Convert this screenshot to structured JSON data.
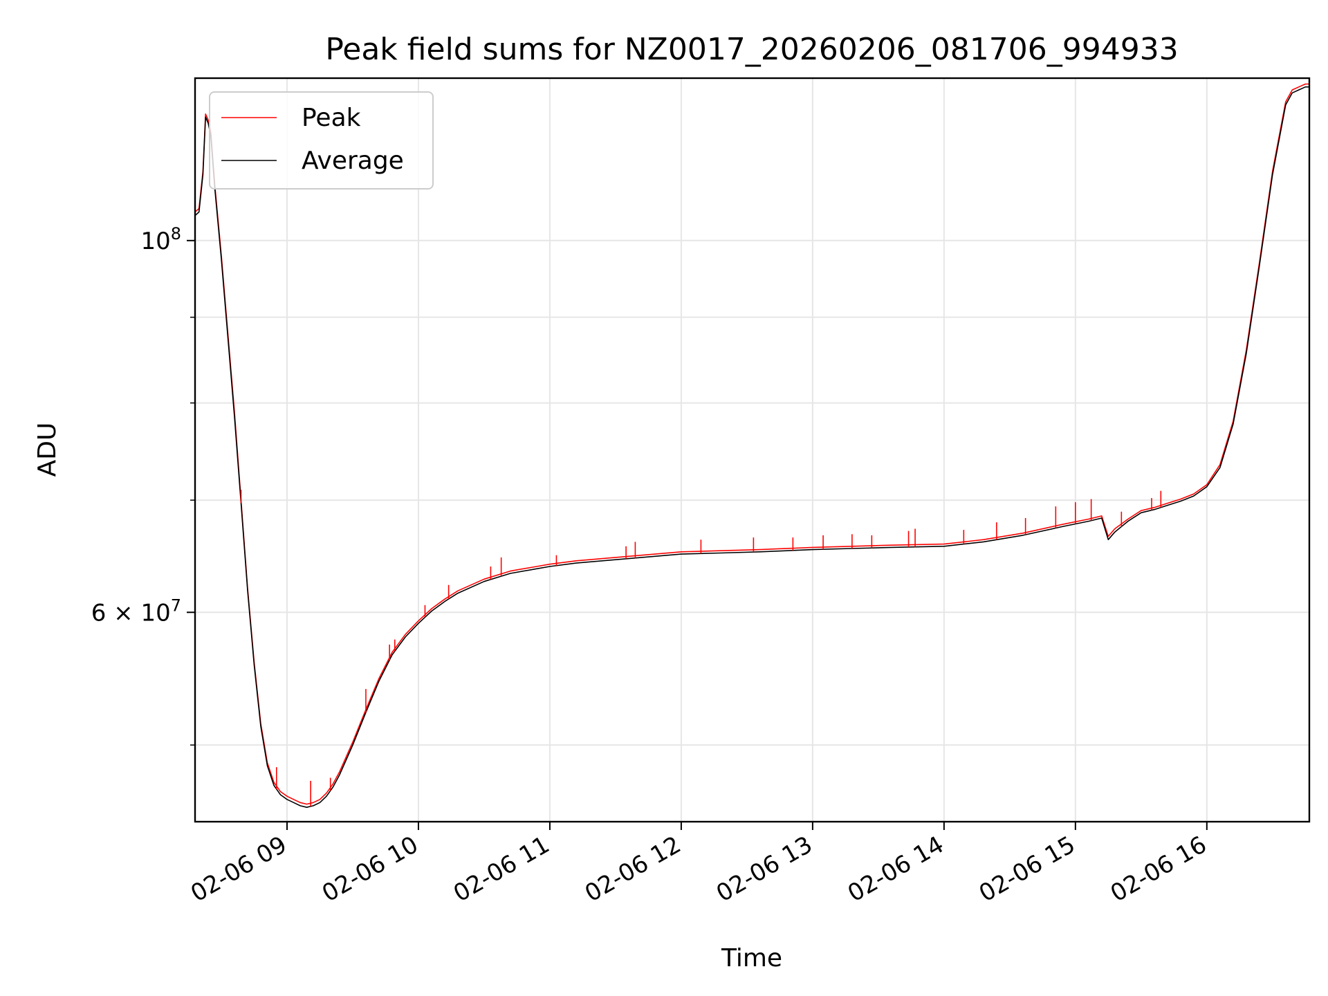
{
  "chart_data": {
    "type": "line",
    "title": "Peak field sums for NZ0017_20260206_081706_994933",
    "xlabel": "Time",
    "ylabel": "ADU",
    "y_scale": "log",
    "ylim": [
      45000000,
      125000000
    ],
    "xlim": [
      8.3,
      16.78
    ],
    "grid": true,
    "legend_position": "top-left",
    "x_ticks": [
      {
        "value": 9,
        "label": "02-06 09"
      },
      {
        "value": 10,
        "label": "02-06 10"
      },
      {
        "value": 11,
        "label": "02-06 11"
      },
      {
        "value": 12,
        "label": "02-06 12"
      },
      {
        "value": 13,
        "label": "02-06 13"
      },
      {
        "value": 14,
        "label": "02-06 14"
      },
      {
        "value": 15,
        "label": "02-06 15"
      },
      {
        "value": 16,
        "label": "02-06 16"
      }
    ],
    "y_ticks": [
      {
        "value": 100000000,
        "label_base": "10",
        "label_exp": "8",
        "label_prefix": ""
      },
      {
        "value": 60000000,
        "label_base": "10",
        "label_exp": "7",
        "label_prefix": "6 × "
      }
    ],
    "y_minor_ticks": [
      50000000,
      70000000,
      80000000,
      90000000
    ],
    "series": [
      {
        "name": "Peak",
        "color": "#ff0000",
        "x": [
          8.3,
          8.33,
          8.36,
          8.38,
          8.4,
          8.42,
          8.45,
          8.5,
          8.55,
          8.6,
          8.65,
          8.7,
          8.75,
          8.8,
          8.85,
          8.9,
          8.95,
          9.0,
          9.05,
          9.1,
          9.15,
          9.2,
          9.25,
          9.3,
          9.35,
          9.4,
          9.5,
          9.6,
          9.7,
          9.8,
          9.9,
          10.0,
          10.1,
          10.2,
          10.3,
          10.5,
          10.7,
          10.9,
          11.0,
          11.2,
          11.5,
          11.8,
          12.0,
          12.3,
          12.6,
          13.0,
          13.3,
          13.6,
          14.0,
          14.3,
          14.6,
          14.9,
          15.1,
          15.2,
          15.25,
          15.3,
          15.4,
          15.5,
          15.6,
          15.7,
          15.8,
          15.9,
          16.0,
          16.1,
          16.2,
          16.3,
          16.4,
          16.5,
          16.6,
          16.65,
          16.7,
          16.75,
          16.78
        ],
        "values": [
          104000000,
          104500000,
          110000000,
          119000000,
          118000000,
          116000000,
          108000000,
          98000000,
          88000000,
          79000000,
          70000000,
          62000000,
          56000000,
          51500000,
          48800000,
          47500000,
          46900000,
          46600000,
          46400000,
          46200000,
          46100000,
          46200000,
          46400000,
          46800000,
          47400000,
          48200000,
          50200000,
          52500000,
          54800000,
          56800000,
          58200000,
          59300000,
          60300000,
          61100000,
          61800000,
          62800000,
          63500000,
          63900000,
          64100000,
          64400000,
          64700000,
          65000000,
          65200000,
          65300000,
          65400000,
          65600000,
          65700000,
          65800000,
          65900000,
          66300000,
          66900000,
          67700000,
          68200000,
          68500000,
          66600000,
          67300000,
          68200000,
          69000000,
          69300000,
          69700000,
          70100000,
          70600000,
          71500000,
          73500000,
          78000000,
          86000000,
          97000000,
          110000000,
          121000000,
          123000000,
          123500000,
          124000000,
          124000000
        ]
      },
      {
        "name": "Average",
        "color": "#000000",
        "x": [
          8.3,
          8.33,
          8.36,
          8.38,
          8.4,
          8.42,
          8.45,
          8.5,
          8.55,
          8.6,
          8.65,
          8.7,
          8.75,
          8.8,
          8.85,
          8.9,
          8.95,
          9.0,
          9.05,
          9.1,
          9.15,
          9.2,
          9.25,
          9.3,
          9.35,
          9.4,
          9.5,
          9.6,
          9.7,
          9.8,
          9.9,
          10.0,
          10.1,
          10.2,
          10.3,
          10.5,
          10.7,
          10.9,
          11.0,
          11.2,
          11.5,
          11.8,
          12.0,
          12.3,
          12.6,
          13.0,
          13.3,
          13.6,
          14.0,
          14.3,
          14.6,
          14.9,
          15.1,
          15.2,
          15.25,
          15.3,
          15.4,
          15.5,
          15.6,
          15.7,
          15.8,
          15.9,
          16.0,
          16.1,
          16.2,
          16.3,
          16.4,
          16.5,
          16.6,
          16.65,
          16.7,
          16.75,
          16.78
        ],
        "values": [
          103500000,
          104000000,
          109500000,
          118500000,
          117500000,
          115500000,
          107500000,
          97500000,
          87500000,
          78500000,
          69700000,
          61800000,
          55800000,
          51300000,
          48600000,
          47300000,
          46700000,
          46400000,
          46200000,
          46000000,
          45900000,
          46000000,
          46200000,
          46600000,
          47200000,
          48000000,
          50000000,
          52300000,
          54600000,
          56600000,
          58000000,
          59100000,
          60100000,
          60900000,
          61600000,
          62600000,
          63300000,
          63700000,
          63900000,
          64200000,
          64500000,
          64800000,
          65000000,
          65100000,
          65200000,
          65400000,
          65500000,
          65600000,
          65700000,
          66100000,
          66700000,
          67500000,
          68000000,
          68300000,
          66300000,
          67000000,
          68000000,
          68800000,
          69100000,
          69500000,
          69900000,
          70400000,
          71300000,
          73200000,
          77700000,
          85600000,
          96600000,
          109500000,
          120500000,
          122500000,
          123000000,
          123500000,
          123500000
        ]
      }
    ],
    "peak_spikes": [
      {
        "x": 8.65,
        "value": 71000000
      },
      {
        "x": 8.92,
        "value": 48500000
      },
      {
        "x": 9.18,
        "value": 47600000
      },
      {
        "x": 9.33,
        "value": 47800000
      },
      {
        "x": 9.6,
        "value": 54000000
      },
      {
        "x": 9.78,
        "value": 57400000
      },
      {
        "x": 9.82,
        "value": 57800000
      },
      {
        "x": 10.05,
        "value": 60600000
      },
      {
        "x": 10.23,
        "value": 62300000
      },
      {
        "x": 10.55,
        "value": 63900000
      },
      {
        "x": 10.63,
        "value": 64700000
      },
      {
        "x": 11.05,
        "value": 64900000
      },
      {
        "x": 11.58,
        "value": 65700000
      },
      {
        "x": 11.65,
        "value": 66100000
      },
      {
        "x": 12.15,
        "value": 66300000
      },
      {
        "x": 12.55,
        "value": 66500000
      },
      {
        "x": 12.85,
        "value": 66500000
      },
      {
        "x": 13.08,
        "value": 66700000
      },
      {
        "x": 13.3,
        "value": 66800000
      },
      {
        "x": 13.45,
        "value": 66700000
      },
      {
        "x": 13.73,
        "value": 67100000
      },
      {
        "x": 13.78,
        "value": 67300000
      },
      {
        "x": 14.15,
        "value": 67200000
      },
      {
        "x": 14.4,
        "value": 67900000
      },
      {
        "x": 14.62,
        "value": 68300000
      },
      {
        "x": 14.85,
        "value": 69400000
      },
      {
        "x": 15.0,
        "value": 69800000
      },
      {
        "x": 15.12,
        "value": 70100000
      },
      {
        "x": 15.35,
        "value": 68900000
      },
      {
        "x": 15.58,
        "value": 70200000
      },
      {
        "x": 15.65,
        "value": 70900000
      }
    ]
  }
}
